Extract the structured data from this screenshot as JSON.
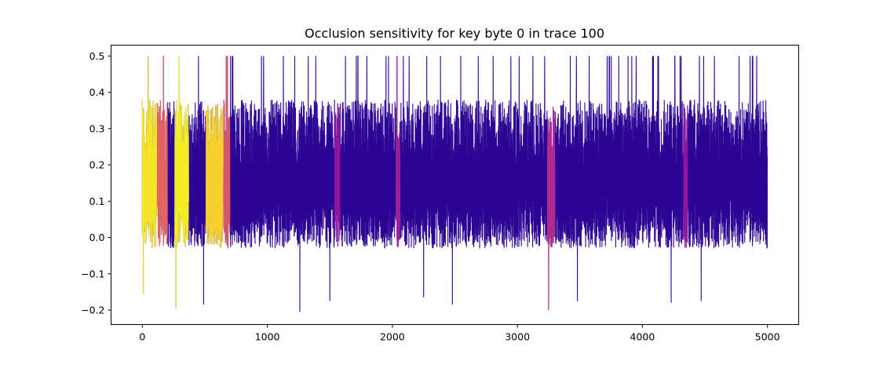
{
  "chart_data": {
    "type": "line",
    "title": "Occlusion sensitivity for key byte 0 in trace 100",
    "xlabel": "",
    "ylabel": "",
    "xlim": [
      -250,
      5250
    ],
    "ylim": [
      -0.24,
      0.53
    ],
    "x_ticks": [
      {
        "value": 0,
        "label": "0"
      },
      {
        "value": 1000,
        "label": "1000"
      },
      {
        "value": 2000,
        "label": "2000"
      },
      {
        "value": 3000,
        "label": "3000"
      },
      {
        "value": 4000,
        "label": "4000"
      },
      {
        "value": 5000,
        "label": "5000"
      }
    ],
    "y_ticks": [
      {
        "value": -0.2,
        "label": "−0.2"
      },
      {
        "value": -0.1,
        "label": "−0.1"
      },
      {
        "value": 0.0,
        "label": "0.0"
      },
      {
        "value": 0.1,
        "label": "0.1"
      },
      {
        "value": 0.2,
        "label": "0.2"
      },
      {
        "value": 0.3,
        "label": "0.3"
      },
      {
        "value": 0.4,
        "label": "0.4"
      },
      {
        "value": 0.5,
        "label": "0.5"
      }
    ],
    "n_samples": 5000,
    "colormap": "plasma",
    "colormap_colors": [
      "#0d0887",
      "#6a00a8",
      "#b12a90",
      "#e16462",
      "#fca636",
      "#f0f921"
    ],
    "base_color": "#2c0594",
    "high_sensitivity_regions": [
      {
        "x_start": 0,
        "x_end": 120,
        "sensitivity": 0.95
      },
      {
        "x_start": 120,
        "x_end": 200,
        "sensitivity": 0.6
      },
      {
        "x_start": 260,
        "x_end": 370,
        "sensitivity": 0.97
      },
      {
        "x_start": 510,
        "x_end": 650,
        "sensitivity": 0.9
      },
      {
        "x_start": 650,
        "x_end": 700,
        "sensitivity": 0.55
      },
      {
        "x_start": 1540,
        "x_end": 1580,
        "sensitivity": 0.3
      },
      {
        "x_start": 2030,
        "x_end": 2060,
        "sensitivity": 0.35
      },
      {
        "x_start": 3240,
        "x_end": 3300,
        "sensitivity": 0.4
      },
      {
        "x_start": 4330,
        "x_end": 4360,
        "sensitivity": 0.3
      }
    ],
    "notable_spikes": [
      {
        "x": 10,
        "y": -0.155
      },
      {
        "x": 270,
        "y": -0.195
      },
      {
        "x": 490,
        "y": -0.185
      },
      {
        "x": 1260,
        "y": -0.205
      },
      {
        "x": 1500,
        "y": -0.175
      },
      {
        "x": 2250,
        "y": -0.165
      },
      {
        "x": 2480,
        "y": -0.185
      },
      {
        "x": 3250,
        "y": -0.2
      },
      {
        "x": 3480,
        "y": -0.175
      },
      {
        "x": 4230,
        "y": -0.18
      },
      {
        "x": 4470,
        "y": -0.175
      }
    ],
    "series_summary": {
      "min": -0.205,
      "max": 0.5,
      "typical_low": -0.03,
      "typical_high": 0.38
    }
  }
}
